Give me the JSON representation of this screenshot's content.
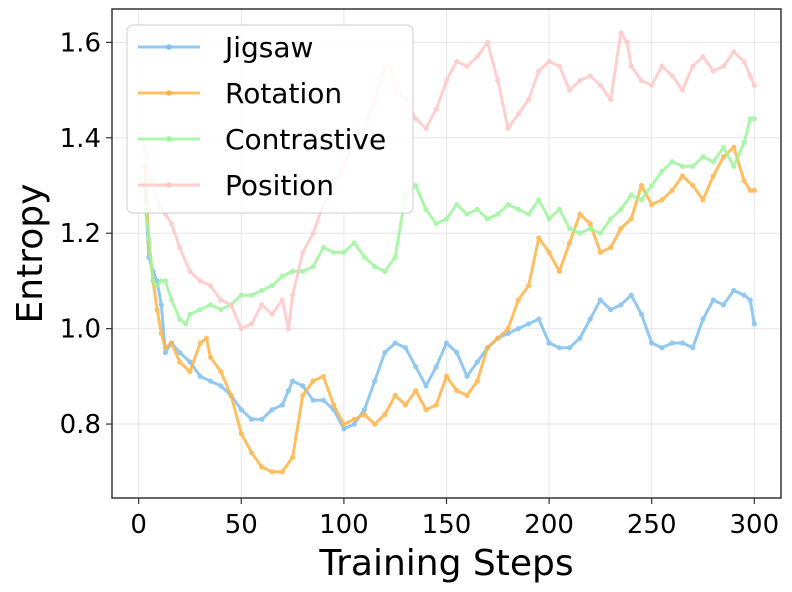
{
  "chart_data": {
    "type": "line",
    "title": "",
    "xlabel": "Training Steps",
    "ylabel": "Entropy",
    "xlim": [
      -13,
      313
    ],
    "ylim": [
      0.645,
      1.67
    ],
    "xticks": [
      0,
      50,
      100,
      150,
      200,
      250,
      300
    ],
    "yticks": [
      0.8,
      1.0,
      1.2,
      1.4,
      1.6
    ],
    "ytick_labels": [
      "0.8",
      "1.0",
      "1.2",
      "1.4",
      "1.6"
    ],
    "grid": true,
    "legend_position": "top-left",
    "series": [
      {
        "name": "Jigsaw",
        "color": "#7fbfee",
        "points": [
          [
            3,
            1.3
          ],
          [
            5,
            1.15
          ],
          [
            7,
            1.12
          ],
          [
            9,
            1.1
          ],
          [
            11,
            1.05
          ],
          [
            13,
            0.95
          ],
          [
            16,
            0.97
          ],
          [
            20,
            0.95
          ],
          [
            25,
            0.93
          ],
          [
            30,
            0.9
          ],
          [
            35,
            0.89
          ],
          [
            40,
            0.88
          ],
          [
            45,
            0.86
          ],
          [
            50,
            0.83
          ],
          [
            55,
            0.81
          ],
          [
            60,
            0.81
          ],
          [
            65,
            0.83
          ],
          [
            70,
            0.84
          ],
          [
            73,
            0.87
          ],
          [
            75,
            0.89
          ],
          [
            80,
            0.88
          ],
          [
            85,
            0.85
          ],
          [
            90,
            0.85
          ],
          [
            95,
            0.83
          ],
          [
            100,
            0.79
          ],
          [
            105,
            0.8
          ],
          [
            110,
            0.83
          ],
          [
            115,
            0.89
          ],
          [
            120,
            0.95
          ],
          [
            125,
            0.97
          ],
          [
            130,
            0.96
          ],
          [
            135,
            0.92
          ],
          [
            140,
            0.88
          ],
          [
            145,
            0.92
          ],
          [
            150,
            0.97
          ],
          [
            155,
            0.95
          ],
          [
            160,
            0.9
          ],
          [
            165,
            0.93
          ],
          [
            170,
            0.96
          ],
          [
            175,
            0.98
          ],
          [
            180,
            0.99
          ],
          [
            185,
            1.0
          ],
          [
            190,
            1.01
          ],
          [
            195,
            1.02
          ],
          [
            200,
            0.97
          ],
          [
            205,
            0.96
          ],
          [
            210,
            0.96
          ],
          [
            215,
            0.98
          ],
          [
            220,
            1.02
          ],
          [
            225,
            1.06
          ],
          [
            230,
            1.04
          ],
          [
            235,
            1.05
          ],
          [
            240,
            1.07
          ],
          [
            245,
            1.03
          ],
          [
            250,
            0.97
          ],
          [
            255,
            0.96
          ],
          [
            260,
            0.97
          ],
          [
            265,
            0.97
          ],
          [
            270,
            0.96
          ],
          [
            275,
            1.02
          ],
          [
            280,
            1.06
          ],
          [
            285,
            1.05
          ],
          [
            290,
            1.08
          ],
          [
            295,
            1.07
          ],
          [
            298,
            1.06
          ],
          [
            300,
            1.01
          ]
        ]
      },
      {
        "name": "Rotation",
        "color": "#ffb347",
        "points": [
          [
            3,
            1.34
          ],
          [
            5,
            1.18
          ],
          [
            7,
            1.1
          ],
          [
            9,
            1.04
          ],
          [
            11,
            0.99
          ],
          [
            13,
            0.96
          ],
          [
            16,
            0.97
          ],
          [
            20,
            0.93
          ],
          [
            25,
            0.91
          ],
          [
            30,
            0.97
          ],
          [
            33,
            0.98
          ],
          [
            35,
            0.94
          ],
          [
            40,
            0.91
          ],
          [
            45,
            0.86
          ],
          [
            50,
            0.78
          ],
          [
            55,
            0.74
          ],
          [
            60,
            0.71
          ],
          [
            65,
            0.7
          ],
          [
            70,
            0.7
          ],
          [
            75,
            0.73
          ],
          [
            80,
            0.86
          ],
          [
            85,
            0.89
          ],
          [
            90,
            0.9
          ],
          [
            95,
            0.84
          ],
          [
            100,
            0.8
          ],
          [
            105,
            0.81
          ],
          [
            110,
            0.82
          ],
          [
            115,
            0.8
          ],
          [
            120,
            0.82
          ],
          [
            125,
            0.86
          ],
          [
            130,
            0.84
          ],
          [
            135,
            0.87
          ],
          [
            140,
            0.83
          ],
          [
            145,
            0.84
          ],
          [
            150,
            0.9
          ],
          [
            155,
            0.87
          ],
          [
            160,
            0.86
          ],
          [
            165,
            0.89
          ],
          [
            170,
            0.96
          ],
          [
            175,
            0.98
          ],
          [
            180,
            1.0
          ],
          [
            185,
            1.06
          ],
          [
            190,
            1.09
          ],
          [
            195,
            1.19
          ],
          [
            200,
            1.16
          ],
          [
            205,
            1.12
          ],
          [
            210,
            1.18
          ],
          [
            215,
            1.24
          ],
          [
            220,
            1.22
          ],
          [
            225,
            1.16
          ],
          [
            230,
            1.17
          ],
          [
            235,
            1.21
          ],
          [
            240,
            1.23
          ],
          [
            245,
            1.3
          ],
          [
            250,
            1.26
          ],
          [
            255,
            1.27
          ],
          [
            260,
            1.29
          ],
          [
            265,
            1.32
          ],
          [
            270,
            1.3
          ],
          [
            275,
            1.27
          ],
          [
            280,
            1.32
          ],
          [
            285,
            1.36
          ],
          [
            290,
            1.38
          ],
          [
            295,
            1.31
          ],
          [
            298,
            1.29
          ],
          [
            300,
            1.29
          ]
        ]
      },
      {
        "name": "Contrastive",
        "color": "#9ef59e",
        "points": [
          [
            3,
            1.26
          ],
          [
            5,
            1.19
          ],
          [
            7,
            1.1
          ],
          [
            9,
            1.09
          ],
          [
            11,
            1.1
          ],
          [
            13,
            1.1
          ],
          [
            16,
            1.06
          ],
          [
            20,
            1.02
          ],
          [
            23,
            1.01
          ],
          [
            25,
            1.03
          ],
          [
            30,
            1.04
          ],
          [
            35,
            1.05
          ],
          [
            40,
            1.04
          ],
          [
            45,
            1.05
          ],
          [
            50,
            1.07
          ],
          [
            55,
            1.07
          ],
          [
            60,
            1.08
          ],
          [
            65,
            1.09
          ],
          [
            70,
            1.11
          ],
          [
            75,
            1.12
          ],
          [
            80,
            1.12
          ],
          [
            85,
            1.13
          ],
          [
            90,
            1.17
          ],
          [
            95,
            1.16
          ],
          [
            100,
            1.16
          ],
          [
            105,
            1.18
          ],
          [
            110,
            1.15
          ],
          [
            115,
            1.13
          ],
          [
            120,
            1.12
          ],
          [
            125,
            1.15
          ],
          [
            130,
            1.28
          ],
          [
            135,
            1.3
          ],
          [
            140,
            1.25
          ],
          [
            145,
            1.22
          ],
          [
            150,
            1.23
          ],
          [
            155,
            1.26
          ],
          [
            160,
            1.24
          ],
          [
            165,
            1.25
          ],
          [
            170,
            1.23
          ],
          [
            175,
            1.24
          ],
          [
            180,
            1.26
          ],
          [
            185,
            1.25
          ],
          [
            190,
            1.24
          ],
          [
            195,
            1.27
          ],
          [
            200,
            1.23
          ],
          [
            205,
            1.25
          ],
          [
            210,
            1.21
          ],
          [
            215,
            1.2
          ],
          [
            220,
            1.21
          ],
          [
            225,
            1.2
          ],
          [
            230,
            1.23
          ],
          [
            235,
            1.25
          ],
          [
            240,
            1.28
          ],
          [
            245,
            1.27
          ],
          [
            250,
            1.3
          ],
          [
            255,
            1.33
          ],
          [
            260,
            1.35
          ],
          [
            265,
            1.34
          ],
          [
            270,
            1.34
          ],
          [
            275,
            1.36
          ],
          [
            280,
            1.35
          ],
          [
            285,
            1.38
          ],
          [
            290,
            1.34
          ],
          [
            295,
            1.39
          ],
          [
            298,
            1.44
          ],
          [
            300,
            1.44
          ]
        ]
      },
      {
        "name": "Position",
        "color": "#ffc7c7",
        "points": [
          [
            3,
            1.38
          ],
          [
            5,
            1.33
          ],
          [
            7,
            1.3
          ],
          [
            9,
            1.27
          ],
          [
            11,
            1.25
          ],
          [
            13,
            1.24
          ],
          [
            16,
            1.22
          ],
          [
            20,
            1.17
          ],
          [
            25,
            1.12
          ],
          [
            30,
            1.1
          ],
          [
            35,
            1.09
          ],
          [
            40,
            1.06
          ],
          [
            45,
            1.05
          ],
          [
            50,
            1.0
          ],
          [
            55,
            1.01
          ],
          [
            60,
            1.05
          ],
          [
            65,
            1.03
          ],
          [
            70,
            1.06
          ],
          [
            73,
            1.0
          ],
          [
            75,
            1.07
          ],
          [
            80,
            1.16
          ],
          [
            85,
            1.2
          ],
          [
            90,
            1.26
          ],
          [
            95,
            1.3
          ],
          [
            100,
            1.34
          ],
          [
            105,
            1.4
          ],
          [
            110,
            1.42
          ],
          [
            115,
            1.48
          ],
          [
            120,
            1.55
          ],
          [
            123,
            1.55
          ],
          [
            125,
            1.5
          ],
          [
            130,
            1.48
          ],
          [
            135,
            1.44
          ],
          [
            140,
            1.42
          ],
          [
            145,
            1.46
          ],
          [
            150,
            1.52
          ],
          [
            155,
            1.56
          ],
          [
            160,
            1.55
          ],
          [
            165,
            1.57
          ],
          [
            170,
            1.6
          ],
          [
            175,
            1.52
          ],
          [
            180,
            1.42
          ],
          [
            185,
            1.45
          ],
          [
            190,
            1.48
          ],
          [
            195,
            1.54
          ],
          [
            200,
            1.56
          ],
          [
            205,
            1.55
          ],
          [
            210,
            1.5
          ],
          [
            215,
            1.52
          ],
          [
            220,
            1.53
          ],
          [
            225,
            1.51
          ],
          [
            230,
            1.48
          ],
          [
            235,
            1.62
          ],
          [
            238,
            1.6
          ],
          [
            240,
            1.55
          ],
          [
            245,
            1.52
          ],
          [
            250,
            1.51
          ],
          [
            255,
            1.55
          ],
          [
            260,
            1.53
          ],
          [
            265,
            1.5
          ],
          [
            270,
            1.55
          ],
          [
            275,
            1.57
          ],
          [
            280,
            1.54
          ],
          [
            285,
            1.55
          ],
          [
            290,
            1.58
          ],
          [
            295,
            1.56
          ],
          [
            298,
            1.53
          ],
          [
            300,
            1.51
          ]
        ]
      }
    ]
  }
}
